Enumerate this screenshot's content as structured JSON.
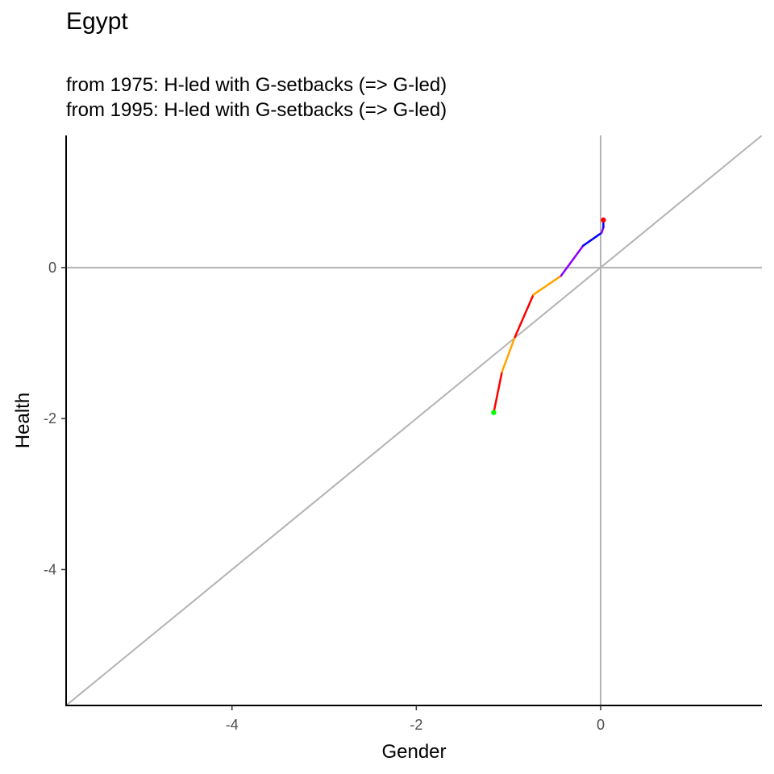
{
  "chart_data": {
    "type": "line",
    "title": "Egypt",
    "subtitle_lines": [
      "from 1975:  H-led with G-setbacks (=> G-led)",
      "from 1995:  H-led with G-setbacks (=> G-led)"
    ],
    "xlabel": "Gender",
    "ylabel": "Health",
    "xlim": [
      -5.8,
      1.75
    ],
    "ylim": [
      -5.8,
      1.75
    ],
    "xticks": [
      -4,
      -2,
      0
    ],
    "yticks": [
      -4,
      -2,
      0
    ],
    "grid": false,
    "reference_lines": [
      "x = 0",
      "y = 0",
      "y = x"
    ],
    "reference_color": "#b3b3b3",
    "trajectory": [
      {
        "from": [
          -1.16,
          -1.92
        ],
        "to": [
          -1.07,
          -1.38
        ],
        "color": "#ff0000"
      },
      {
        "from": [
          -1.07,
          -1.38
        ],
        "to": [
          -0.93,
          -0.92
        ],
        "color": "#ffa500"
      },
      {
        "from": [
          -0.93,
          -0.92
        ],
        "to": [
          -0.73,
          -0.36
        ],
        "color": "#ff0000"
      },
      {
        "from": [
          -0.73,
          -0.36
        ],
        "to": [
          -0.43,
          -0.11
        ],
        "color": "#ffa500"
      },
      {
        "from": [
          -0.43,
          -0.11
        ],
        "to": [
          -0.19,
          0.29
        ],
        "color": "#8b00ff"
      },
      {
        "from": [
          -0.19,
          0.29
        ],
        "to": [
          0.01,
          0.46
        ],
        "color": "#0000ff"
      },
      {
        "from": [
          0.01,
          0.46
        ],
        "to": [
          0.03,
          0.53
        ],
        "color": "#8b00ff"
      },
      {
        "from": [
          0.03,
          0.53
        ],
        "to": [
          0.03,
          0.63
        ],
        "color": "#0000ff"
      }
    ],
    "start_point": {
      "x": -1.16,
      "y": -1.92,
      "color": "#00ff00"
    },
    "end_point": {
      "x": 0.03,
      "y": 0.63,
      "color": "#ff0000"
    }
  }
}
